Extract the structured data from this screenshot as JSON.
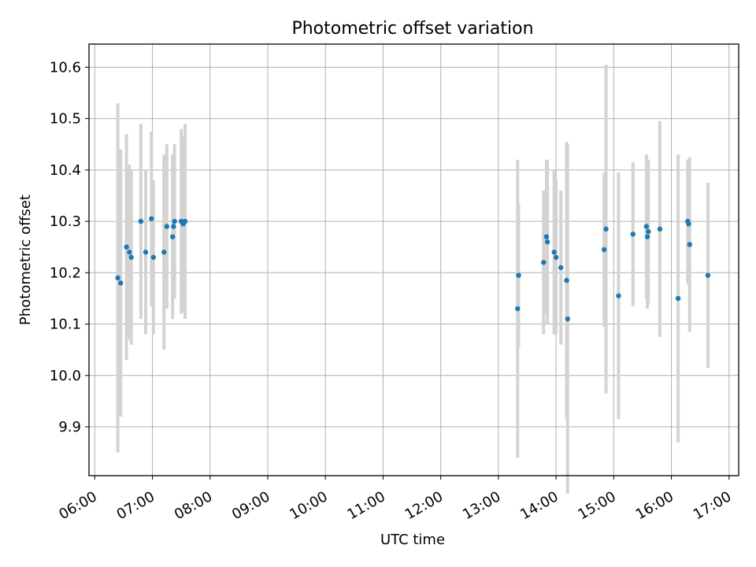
{
  "chart_data": {
    "type": "scatter",
    "title": "Photometric offset variation",
    "xlabel": "UTC time",
    "ylabel": "Photometric offset",
    "xlim": [
      "05:54",
      "17:10"
    ],
    "ylim": [
      9.805,
      10.645
    ],
    "grid": true,
    "x_ticks": [
      "06:00",
      "07:00",
      "08:00",
      "09:00",
      "10:00",
      "11:00",
      "12:00",
      "13:00",
      "14:00",
      "15:00",
      "16:00",
      "17:00"
    ],
    "y_ticks": [
      9.9,
      10.0,
      10.1,
      10.2,
      10.3,
      10.4,
      10.5,
      10.6
    ],
    "y_tick_labels": [
      "9.9",
      "10.0",
      "10.1",
      "10.2",
      "10.3",
      "10.4",
      "10.5",
      "10.6"
    ],
    "colors": {
      "points": "#1f77b4",
      "errorbars": "#d3d3d3",
      "grid": "#b0b0b0"
    },
    "series": [
      {
        "points": [
          {
            "x": "06:24",
            "y": 10.19,
            "yerr": 0.34
          },
          {
            "x": "06:27",
            "y": 10.18,
            "yerr": 0.26
          },
          {
            "x": "06:33",
            "y": 10.25,
            "yerr": 0.22
          },
          {
            "x": "06:36",
            "y": 10.24,
            "yerr": 0.17
          },
          {
            "x": "06:38",
            "y": 10.23,
            "yerr": 0.17
          },
          {
            "x": "06:48",
            "y": 10.3,
            "yerr": 0.19
          },
          {
            "x": "06:53",
            "y": 10.24,
            "yerr": 0.16
          },
          {
            "x": "06:59",
            "y": 10.305,
            "yerr": 0.17
          },
          {
            "x": "07:01",
            "y": 10.23,
            "yerr": 0.15
          },
          {
            "x": "07:12",
            "y": 10.24,
            "yerr": 0.19
          },
          {
            "x": "07:15",
            "y": 10.29,
            "yerr": 0.16
          },
          {
            "x": "07:21",
            "y": 10.27,
            "yerr": 0.16
          },
          {
            "x": "07:22",
            "y": 10.29,
            "yerr": 0.14
          },
          {
            "x": "07:23",
            "y": 10.3,
            "yerr": 0.15
          },
          {
            "x": "07:30",
            "y": 10.3,
            "yerr": 0.18
          },
          {
            "x": "07:32",
            "y": 10.295,
            "yerr": 0.17
          },
          {
            "x": "07:34",
            "y": 10.3,
            "yerr": 0.19
          },
          {
            "x": "13:20",
            "y": 10.13,
            "yerr": 0.29
          },
          {
            "x": "13:21",
            "y": 10.195,
            "yerr": 0.14
          },
          {
            "x": "13:47",
            "y": 10.22,
            "yerr": 0.14
          },
          {
            "x": "13:50",
            "y": 10.27,
            "yerr": 0.15
          },
          {
            "x": "13:51",
            "y": 10.26,
            "yerr": 0.16
          },
          {
            "x": "13:58",
            "y": 10.24,
            "yerr": 0.16
          },
          {
            "x": "14:00",
            "y": 10.23,
            "yerr": 0.15
          },
          {
            "x": "14:05",
            "y": 10.21,
            "yerr": 0.15
          },
          {
            "x": "14:11",
            "y": 10.185,
            "yerr": 0.27
          },
          {
            "x": "14:12",
            "y": 10.11,
            "yerr": 0.34
          },
          {
            "x": "14:50",
            "y": 10.245,
            "yerr": 0.15
          },
          {
            "x": "14:52",
            "y": 10.285,
            "yerr": 0.32
          },
          {
            "x": "15:05",
            "y": 10.155,
            "yerr": 0.24
          },
          {
            "x": "15:20",
            "y": 10.275,
            "yerr": 0.14
          },
          {
            "x": "15:34",
            "y": 10.29,
            "yerr": 0.14
          },
          {
            "x": "15:35",
            "y": 10.27,
            "yerr": 0.14
          },
          {
            "x": "15:36",
            "y": 10.28,
            "yerr": 0.14
          },
          {
            "x": "15:48",
            "y": 10.285,
            "yerr": 0.21
          },
          {
            "x": "16:07",
            "y": 10.15,
            "yerr": 0.28
          },
          {
            "x": "16:17",
            "y": 10.3,
            "yerr": 0.12
          },
          {
            "x": "16:18",
            "y": 10.295,
            "yerr": 0.12
          },
          {
            "x": "16:19",
            "y": 10.255,
            "yerr": 0.17
          },
          {
            "x": "16:38",
            "y": 10.195,
            "yerr": 0.18
          }
        ]
      }
    ]
  }
}
